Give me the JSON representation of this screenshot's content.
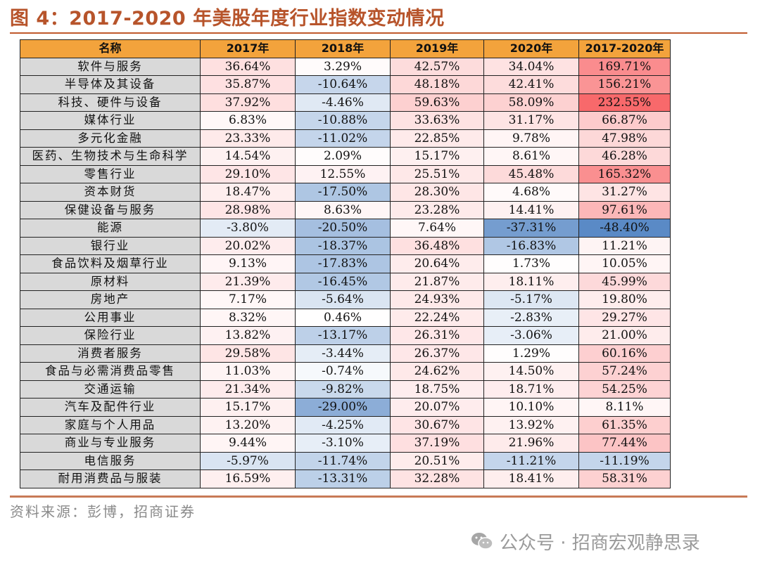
{
  "title": "图 4：2017-2020 年美股年度行业指数变动情况",
  "source": "资料来源：彭博，招商证券",
  "watermark": "公众号 · 招商宏观静思录",
  "colors": {
    "header_bg": "#f3a33c",
    "name_bg": "#d9d9d9",
    "positive": "#f8696b",
    "negative": "#5a8ac6",
    "neutral": "#ffffff",
    "title": "#b7542b"
  },
  "chart_data": {
    "type": "table",
    "columns": [
      "名称",
      "2017年",
      "2018年",
      "2019年",
      "2020年",
      "2017-2020年"
    ],
    "rows": [
      {
        "name": "软件与服务",
        "values": [
          "36.64%",
          "3.29%",
          "42.57%",
          "34.04%",
          "169.71%"
        ]
      },
      {
        "name": "半导体及其设备",
        "values": [
          "35.87%",
          "-10.64%",
          "48.18%",
          "42.41%",
          "156.21%"
        ]
      },
      {
        "name": "科技、硬件与设备",
        "values": [
          "37.92%",
          "-4.46%",
          "59.63%",
          "58.09%",
          "232.55%"
        ]
      },
      {
        "name": "媒体行业",
        "values": [
          "6.83%",
          "-10.88%",
          "33.63%",
          "31.17%",
          "66.87%"
        ]
      },
      {
        "name": "多元化金融",
        "values": [
          "23.33%",
          "-11.02%",
          "22.85%",
          "9.78%",
          "47.98%"
        ]
      },
      {
        "name": "医药、生物技术与生命科学",
        "values": [
          "14.54%",
          "2.09%",
          "15.17%",
          "8.61%",
          "46.28%"
        ]
      },
      {
        "name": "零售行业",
        "values": [
          "29.10%",
          "12.55%",
          "25.51%",
          "45.48%",
          "165.32%"
        ]
      },
      {
        "name": "资本财货",
        "values": [
          "18.47%",
          "-17.50%",
          "28.30%",
          "4.68%",
          "31.27%"
        ]
      },
      {
        "name": "保健设备与服务",
        "values": [
          "28.98%",
          "8.63%",
          "23.28%",
          "14.41%",
          "97.61%"
        ]
      },
      {
        "name": "能源",
        "values": [
          "-3.80%",
          "-20.50%",
          "7.64%",
          "-37.31%",
          "-48.40%"
        ]
      },
      {
        "name": "银行业",
        "values": [
          "20.02%",
          "-18.37%",
          "36.48%",
          "-16.83%",
          "11.21%"
        ]
      },
      {
        "name": "食品饮料及烟草行业",
        "values": [
          "9.13%",
          "-17.83%",
          "20.64%",
          "1.73%",
          "10.05%"
        ]
      },
      {
        "name": "原材料",
        "values": [
          "21.39%",
          "-16.45%",
          "21.87%",
          "18.11%",
          "45.99%"
        ]
      },
      {
        "name": "房地产",
        "values": [
          "7.17%",
          "-5.64%",
          "24.93%",
          "-5.17%",
          "19.80%"
        ]
      },
      {
        "name": "公用事业",
        "values": [
          "8.32%",
          "0.46%",
          "22.24%",
          "-2.83%",
          "29.27%"
        ]
      },
      {
        "name": "保险行业",
        "values": [
          "13.82%",
          "-13.17%",
          "26.31%",
          "-3.06%",
          "21.00%"
        ]
      },
      {
        "name": "消费者服务",
        "values": [
          "29.58%",
          "-3.44%",
          "26.37%",
          "1.29%",
          "60.16%"
        ]
      },
      {
        "name": "食品与必需消费品零售",
        "values": [
          "11.03%",
          "-0.74%",
          "24.62%",
          "14.50%",
          "57.24%"
        ]
      },
      {
        "name": "交通运输",
        "values": [
          "21.34%",
          "-9.82%",
          "18.75%",
          "18.71%",
          "54.25%"
        ]
      },
      {
        "name": "汽车及配件行业",
        "values": [
          "15.17%",
          "-29.00%",
          "20.07%",
          "10.10%",
          "8.11%"
        ]
      },
      {
        "name": "家庭与个人用品",
        "values": [
          "13.20%",
          "-4.25%",
          "30.67%",
          "13.92%",
          "61.35%"
        ]
      },
      {
        "name": "商业与专业服务",
        "values": [
          "9.44%",
          "-3.10%",
          "37.19%",
          "21.96%",
          "77.44%"
        ]
      },
      {
        "name": "电信服务",
        "values": [
          "-5.97%",
          "-11.74%",
          "20.51%",
          "-11.21%",
          "-11.19%"
        ]
      },
      {
        "name": "耐用消费品与服装",
        "values": [
          "16.59%",
          "-13.31%",
          "32.28%",
          "18.41%",
          "58.31%"
        ]
      }
    ]
  }
}
